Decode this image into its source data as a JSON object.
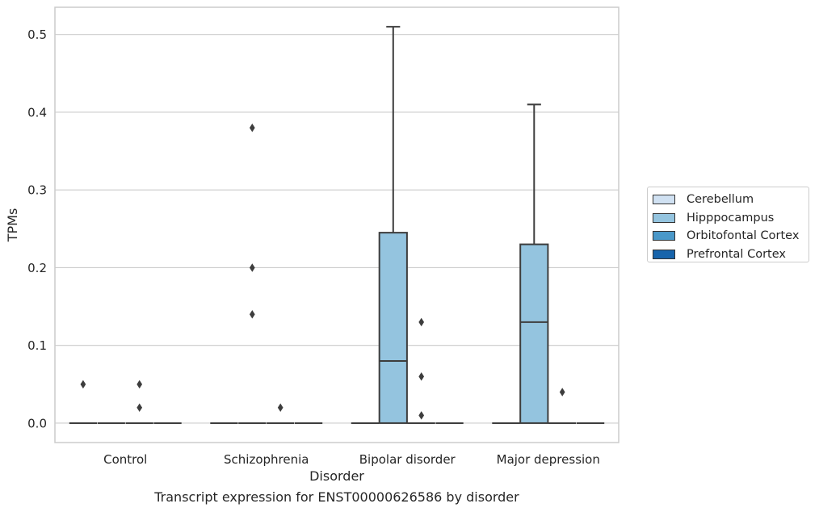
{
  "chart_data": {
    "type": "box",
    "caption": "Transcript expression for ENST00000626586 by disorder",
    "xlabel": "Disorder",
    "ylabel": "TPMs",
    "ylim": [
      -0.025,
      0.535
    ],
    "yticks": [
      0.0,
      0.1,
      0.2,
      0.3,
      0.4,
      0.5
    ],
    "ytick_labels": [
      "0.0",
      "0.1",
      "0.2",
      "0.3",
      "0.4",
      "0.5"
    ],
    "categories": [
      "Control",
      "Schizophrenia",
      "Bipolar disorder",
      "Major depression"
    ],
    "hue_order": [
      "Cerebellum",
      "Hipppocampus",
      "Orbitofontal Cortex",
      "Prefrontal Cortex"
    ],
    "colors": {
      "Cerebellum": "#d0e1f2",
      "Hipppocampus": "#94c4df",
      "Orbitofontal Cortex": "#4a98c9",
      "Prefrontal Cortex": "#1764ab"
    },
    "grid": true,
    "legend_position": "right, outside",
    "boxes": [
      {
        "category": "Control",
        "hue": "Cerebellum",
        "q1": 0,
        "median": 0,
        "q3": 0,
        "whisker_low": 0,
        "whisker_high": 0,
        "outliers": [
          0.05
        ]
      },
      {
        "category": "Control",
        "hue": "Hipppocampus",
        "q1": 0,
        "median": 0,
        "q3": 0,
        "whisker_low": 0,
        "whisker_high": 0,
        "outliers": []
      },
      {
        "category": "Control",
        "hue": "Orbitofontal Cortex",
        "q1": 0,
        "median": 0,
        "q3": 0,
        "whisker_low": 0,
        "whisker_high": 0,
        "outliers": [
          0.05,
          0.02
        ]
      },
      {
        "category": "Control",
        "hue": "Prefrontal Cortex",
        "q1": 0,
        "median": 0,
        "q3": 0,
        "whisker_low": 0,
        "whisker_high": 0,
        "outliers": []
      },
      {
        "category": "Schizophrenia",
        "hue": "Cerebellum",
        "q1": 0,
        "median": 0,
        "q3": 0,
        "whisker_low": 0,
        "whisker_high": 0,
        "outliers": []
      },
      {
        "category": "Schizophrenia",
        "hue": "Hipppocampus",
        "q1": 0,
        "median": 0,
        "q3": 0,
        "whisker_low": 0,
        "whisker_high": 0,
        "outliers": [
          0.38,
          0.2,
          0.14
        ]
      },
      {
        "category": "Schizophrenia",
        "hue": "Orbitofontal Cortex",
        "q1": 0,
        "median": 0,
        "q3": 0,
        "whisker_low": 0,
        "whisker_high": 0,
        "outliers": [
          0.02
        ]
      },
      {
        "category": "Schizophrenia",
        "hue": "Prefrontal Cortex",
        "q1": 0,
        "median": 0,
        "q3": 0,
        "whisker_low": 0,
        "whisker_high": 0,
        "outliers": []
      },
      {
        "category": "Bipolar disorder",
        "hue": "Cerebellum",
        "q1": 0,
        "median": 0,
        "q3": 0,
        "whisker_low": 0,
        "whisker_high": 0,
        "outliers": []
      },
      {
        "category": "Bipolar disorder",
        "hue": "Hipppocampus",
        "q1": 0,
        "median": 0.08,
        "q3": 0.245,
        "whisker_low": 0,
        "whisker_high": 0.51,
        "outliers": []
      },
      {
        "category": "Bipolar disorder",
        "hue": "Orbitofontal Cortex",
        "q1": 0,
        "median": 0,
        "q3": 0,
        "whisker_low": 0,
        "whisker_high": 0,
        "outliers": [
          0.13,
          0.06,
          0.01
        ]
      },
      {
        "category": "Bipolar disorder",
        "hue": "Prefrontal Cortex",
        "q1": 0,
        "median": 0,
        "q3": 0,
        "whisker_low": 0,
        "whisker_high": 0,
        "outliers": []
      },
      {
        "category": "Major depression",
        "hue": "Cerebellum",
        "q1": 0,
        "median": 0,
        "q3": 0,
        "whisker_low": 0,
        "whisker_high": 0,
        "outliers": []
      },
      {
        "category": "Major depression",
        "hue": "Hipppocampus",
        "q1": 0,
        "median": 0.13,
        "q3": 0.23,
        "whisker_low": 0,
        "whisker_high": 0.41,
        "outliers": []
      },
      {
        "category": "Major depression",
        "hue": "Orbitofontal Cortex",
        "q1": 0,
        "median": 0,
        "q3": 0,
        "whisker_low": 0,
        "whisker_high": 0,
        "outliers": [
          0.04
        ]
      },
      {
        "category": "Major depression",
        "hue": "Prefrontal Cortex",
        "q1": 0,
        "median": 0,
        "q3": 0,
        "whisker_low": 0,
        "whisker_high": 0,
        "outliers": []
      }
    ]
  }
}
